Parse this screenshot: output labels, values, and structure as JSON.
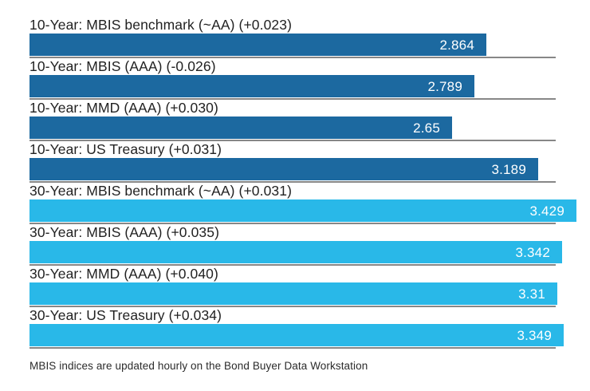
{
  "chart_data": {
    "type": "bar",
    "orientation": "horizontal",
    "title": "",
    "xlabel": "",
    "ylabel": "",
    "xlim": [
      0,
      3.3
    ],
    "grid": "baseline-per-row",
    "legend_position": "none",
    "colors": {
      "10-year": "#1c69a0",
      "30-year": "#29b8e8"
    },
    "gridline_color": "#878787",
    "value_label_color": "#ffffff",
    "items": [
      {
        "label": "10-Year: MBIS benchmark (~AA) (+0.023)",
        "value": 2.864,
        "value_label": "2.864",
        "group": "10-year"
      },
      {
        "label": "10-Year: MBIS (AAA) (-0.026)",
        "value": 2.789,
        "value_label": "2.789",
        "group": "10-year"
      },
      {
        "label": "10-Year: MMD (AAA) (+0.030)",
        "value": 2.65,
        "value_label": "2.65",
        "group": "10-year"
      },
      {
        "label": "10-Year: US Treasury (+0.031)",
        "value": 3.189,
        "value_label": "3.189",
        "group": "10-year"
      },
      {
        "label": "30-Year: MBIS benchmark (~AA) (+0.031)",
        "value": 3.429,
        "value_label": "3.429",
        "group": "30-year"
      },
      {
        "label": "30-Year: MBIS (AAA) (+0.035)",
        "value": 3.342,
        "value_label": "3.342",
        "group": "30-year"
      },
      {
        "label": "30-Year: MMD (AAA) (+0.040)",
        "value": 3.31,
        "value_label": "3.31",
        "group": "30-year"
      },
      {
        "label": "30-Year: US Treasury (+0.034)",
        "value": 3.349,
        "value_label": "3.349",
        "group": "30-year"
      }
    ],
    "footnote": "MBIS indices are updated hourly on the Bond Buyer Data Workstation"
  }
}
